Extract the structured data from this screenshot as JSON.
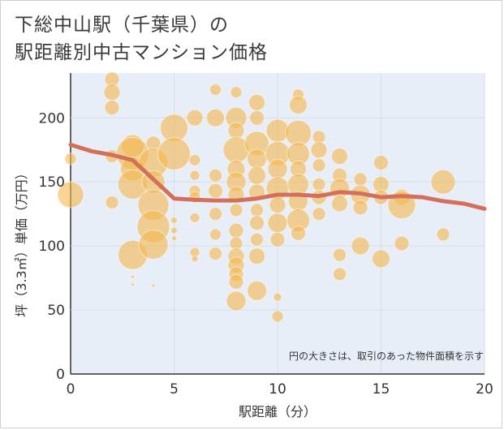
{
  "title": {
    "line1": "下総中山駅（千葉県）の",
    "line2": "駅距離別中古マンション価格"
  },
  "note": "円の大きさは、取引のあった物件面積を示す",
  "colors": {
    "bubble": "#f4b74f",
    "trend": "#d4705a",
    "grid": "#d5dde8",
    "plot_bg": "#e8eef7"
  },
  "chart_data": {
    "type": "scatter",
    "xlabel": "駅距離（分）",
    "ylabel": "坪（3.3㎡）単価（万円）",
    "xlim": [
      0,
      20
    ],
    "ylim": [
      0,
      235
    ],
    "x_ticks": [
      0,
      5,
      10,
      15,
      20
    ],
    "y_ticks": [
      0,
      50,
      100,
      150,
      200
    ],
    "grid": true,
    "points": [
      {
        "x": 0,
        "y": 168,
        "r": 7
      },
      {
        "x": 0,
        "y": 140,
        "r": 16
      },
      {
        "x": 2,
        "y": 230,
        "r": 9
      },
      {
        "x": 2,
        "y": 220,
        "r": 10
      },
      {
        "x": 2,
        "y": 208,
        "r": 9
      },
      {
        "x": 2,
        "y": 170,
        "r": 8
      },
      {
        "x": 2,
        "y": 134,
        "r": 8
      },
      {
        "x": 3,
        "y": 178,
        "r": 14
      },
      {
        "x": 3,
        "y": 172,
        "r": 20
      },
      {
        "x": 3,
        "y": 160,
        "r": 15
      },
      {
        "x": 3,
        "y": 148,
        "r": 18
      },
      {
        "x": 3,
        "y": 93,
        "r": 18
      },
      {
        "x": 3,
        "y": 76,
        "r": 2
      },
      {
        "x": 3,
        "y": 70,
        "r": 2
      },
      {
        "x": 4,
        "y": 180,
        "r": 9
      },
      {
        "x": 4,
        "y": 165,
        "r": 18
      },
      {
        "x": 4,
        "y": 150,
        "r": 14
      },
      {
        "x": 4,
        "y": 132,
        "r": 19
      },
      {
        "x": 4,
        "y": 115,
        "r": 20
      },
      {
        "x": 4,
        "y": 101,
        "r": 18
      },
      {
        "x": 4,
        "y": 69,
        "r": 2
      },
      {
        "x": 5,
        "y": 192,
        "r": 17
      },
      {
        "x": 5,
        "y": 172,
        "r": 20
      },
      {
        "x": 5,
        "y": 120,
        "r": 4
      },
      {
        "x": 5,
        "y": 112,
        "r": 4
      },
      {
        "x": 5,
        "y": 106,
        "r": 3
      },
      {
        "x": 6,
        "y": 200,
        "r": 10
      },
      {
        "x": 6,
        "y": 167,
        "r": 7
      },
      {
        "x": 6,
        "y": 155,
        "r": 6
      },
      {
        "x": 6,
        "y": 143,
        "r": 7
      },
      {
        "x": 6,
        "y": 138,
        "r": 7
      },
      {
        "x": 6,
        "y": 122,
        "r": 6
      },
      {
        "x": 6,
        "y": 95,
        "r": 6
      },
      {
        "x": 6,
        "y": 90,
        "r": 4
      },
      {
        "x": 7,
        "y": 222,
        "r": 7
      },
      {
        "x": 7,
        "y": 200,
        "r": 11
      },
      {
        "x": 7,
        "y": 155,
        "r": 8
      },
      {
        "x": 7,
        "y": 143,
        "r": 9
      },
      {
        "x": 7,
        "y": 125,
        "r": 8
      },
      {
        "x": 7,
        "y": 109,
        "r": 7
      },
      {
        "x": 7,
        "y": 94,
        "r": 8
      },
      {
        "x": 8,
        "y": 220,
        "r": 7
      },
      {
        "x": 8,
        "y": 200,
        "r": 13
      },
      {
        "x": 8,
        "y": 190,
        "r": 10
      },
      {
        "x": 8,
        "y": 175,
        "r": 16
      },
      {
        "x": 8,
        "y": 160,
        "r": 11
      },
      {
        "x": 8,
        "y": 150,
        "r": 12
      },
      {
        "x": 8,
        "y": 140,
        "r": 10
      },
      {
        "x": 8,
        "y": 128,
        "r": 8
      },
      {
        "x": 8,
        "y": 112,
        "r": 9
      },
      {
        "x": 8,
        "y": 102,
        "r": 8
      },
      {
        "x": 8,
        "y": 92,
        "r": 10
      },
      {
        "x": 8,
        "y": 85,
        "r": 10
      },
      {
        "x": 8,
        "y": 78,
        "r": 9
      },
      {
        "x": 8,
        "y": 72,
        "r": 9
      },
      {
        "x": 8,
        "y": 57,
        "r": 12
      },
      {
        "x": 9,
        "y": 212,
        "r": 10
      },
      {
        "x": 9,
        "y": 200,
        "r": 9
      },
      {
        "x": 9,
        "y": 180,
        "r": 15
      },
      {
        "x": 9,
        "y": 168,
        "r": 12
      },
      {
        "x": 9,
        "y": 155,
        "r": 11
      },
      {
        "x": 9,
        "y": 142,
        "r": 10
      },
      {
        "x": 9,
        "y": 128,
        "r": 8
      },
      {
        "x": 9,
        "y": 118,
        "r": 9
      },
      {
        "x": 9,
        "y": 105,
        "r": 8
      },
      {
        "x": 9,
        "y": 92,
        "r": 10
      },
      {
        "x": 9,
        "y": 65,
        "r": 12
      },
      {
        "x": 10,
        "y": 190,
        "r": 14
      },
      {
        "x": 10,
        "y": 172,
        "r": 15
      },
      {
        "x": 10,
        "y": 160,
        "r": 12
      },
      {
        "x": 10,
        "y": 145,
        "r": 14
      },
      {
        "x": 10,
        "y": 132,
        "r": 10
      },
      {
        "x": 10,
        "y": 118,
        "r": 12
      },
      {
        "x": 10,
        "y": 105,
        "r": 9
      },
      {
        "x": 10,
        "y": 60,
        "r": 5
      },
      {
        "x": 10,
        "y": 45,
        "r": 7
      },
      {
        "x": 11,
        "y": 218,
        "r": 7
      },
      {
        "x": 11,
        "y": 210,
        "r": 11
      },
      {
        "x": 11,
        "y": 188,
        "r": 16
      },
      {
        "x": 11,
        "y": 172,
        "r": 14
      },
      {
        "x": 11,
        "y": 160,
        "r": 10
      },
      {
        "x": 11,
        "y": 148,
        "r": 13
      },
      {
        "x": 11,
        "y": 135,
        "r": 12
      },
      {
        "x": 11,
        "y": 120,
        "r": 14
      },
      {
        "x": 11,
        "y": 110,
        "r": 9
      },
      {
        "x": 12,
        "y": 185,
        "r": 8
      },
      {
        "x": 12,
        "y": 175,
        "r": 10
      },
      {
        "x": 12,
        "y": 163,
        "r": 8
      },
      {
        "x": 12,
        "y": 148,
        "r": 8
      },
      {
        "x": 12,
        "y": 138,
        "r": 9
      },
      {
        "x": 12,
        "y": 125,
        "r": 8
      },
      {
        "x": 13,
        "y": 170,
        "r": 10
      },
      {
        "x": 13,
        "y": 155,
        "r": 9
      },
      {
        "x": 13,
        "y": 145,
        "r": 12
      },
      {
        "x": 13,
        "y": 133,
        "r": 10
      },
      {
        "x": 13,
        "y": 93,
        "r": 8
      },
      {
        "x": 13,
        "y": 78,
        "r": 8
      },
      {
        "x": 14,
        "y": 152,
        "r": 8
      },
      {
        "x": 14,
        "y": 140,
        "r": 12
      },
      {
        "x": 14,
        "y": 130,
        "r": 9
      },
      {
        "x": 14,
        "y": 100,
        "r": 11
      },
      {
        "x": 15,
        "y": 165,
        "r": 9
      },
      {
        "x": 15,
        "y": 148,
        "r": 10
      },
      {
        "x": 15,
        "y": 138,
        "r": 9
      },
      {
        "x": 15,
        "y": 90,
        "r": 11
      },
      {
        "x": 16,
        "y": 138,
        "r": 10
      },
      {
        "x": 16,
        "y": 132,
        "r": 17
      },
      {
        "x": 16,
        "y": 102,
        "r": 9
      },
      {
        "x": 18,
        "y": 150,
        "r": 15
      },
      {
        "x": 18,
        "y": 109,
        "r": 8
      }
    ],
    "trend": {
      "x": [
        0,
        1,
        2,
        3,
        4,
        5,
        6,
        7,
        8,
        9,
        10,
        11,
        12,
        13,
        14,
        15,
        16,
        17,
        18,
        19,
        20
      ],
      "y": [
        179,
        174,
        171,
        167,
        152,
        137,
        136,
        135.5,
        135.5,
        137,
        140,
        140,
        139,
        142,
        141,
        138,
        139,
        138,
        135,
        133,
        129
      ]
    }
  }
}
